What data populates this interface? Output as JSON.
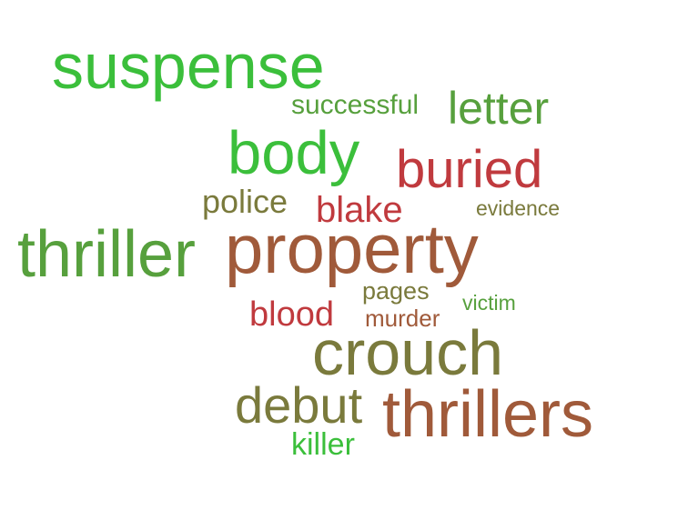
{
  "word_cloud": {
    "words": [
      {
        "text": "suspense",
        "color": "#3bbf3b"
      },
      {
        "text": "successful",
        "color": "#57a03d"
      },
      {
        "text": "letter",
        "color": "#57a03d"
      },
      {
        "text": "body",
        "color": "#3bbf3b"
      },
      {
        "text": "buried",
        "color": "#c03a3e"
      },
      {
        "text": "police",
        "color": "#7a7a3c"
      },
      {
        "text": "blake",
        "color": "#c03a3e"
      },
      {
        "text": "evidence",
        "color": "#7a7a3c"
      },
      {
        "text": "thriller",
        "color": "#57a03d"
      },
      {
        "text": "property",
        "color": "#a05a3a"
      },
      {
        "text": "pages",
        "color": "#7a7a3c"
      },
      {
        "text": "victim",
        "color": "#57a03d"
      },
      {
        "text": "blood",
        "color": "#c03a3e"
      },
      {
        "text": "murder",
        "color": "#a05a3a"
      },
      {
        "text": "crouch",
        "color": "#7a7a3c"
      },
      {
        "text": "debut",
        "color": "#7a7a3c"
      },
      {
        "text": "thrillers",
        "color": "#a05a3a"
      },
      {
        "text": "killer",
        "color": "#3bbf3b"
      }
    ]
  }
}
